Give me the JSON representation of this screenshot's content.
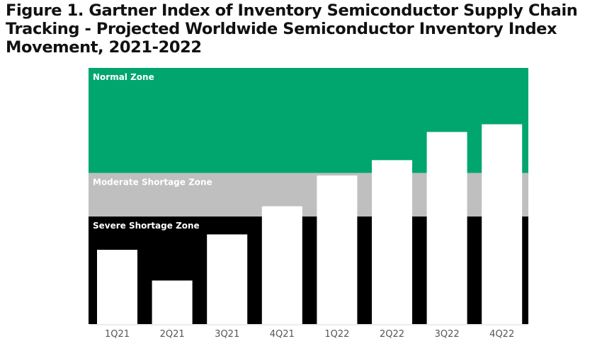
{
  "chart_data": {
    "type": "bar",
    "title": "Figure 1. Gartner Index of Inventory Semiconductor Supply Chain Tracking - Projected Worldwide Semiconductor Inventory Index Movement, 2021-2022",
    "xlabel": "",
    "ylabel": "",
    "categories": [
      "1Q21",
      "2Q21",
      "3Q21",
      "4Q21",
      "1Q22",
      "2Q22",
      "3Q22",
      "4Q22"
    ],
    "values": [
      29,
      17,
      35,
      46,
      58,
      64,
      75,
      78
    ],
    "ylim": [
      0,
      100
    ],
    "grid": false,
    "zones": [
      {
        "name": "Severe Shortage Zone",
        "from": 0,
        "to": 42,
        "color": "#000000",
        "text_color": "#ffffff"
      },
      {
        "name": "Moderate Shortage Zone",
        "from": 42,
        "to": 59,
        "color": "#bfbfbf",
        "text_color": "#ffffff"
      },
      {
        "name": "Normal Zone",
        "from": 59,
        "to": 100,
        "color": "#00a66e",
        "text_color": "#ffffff"
      }
    ],
    "bar_color": "#ffffff"
  }
}
